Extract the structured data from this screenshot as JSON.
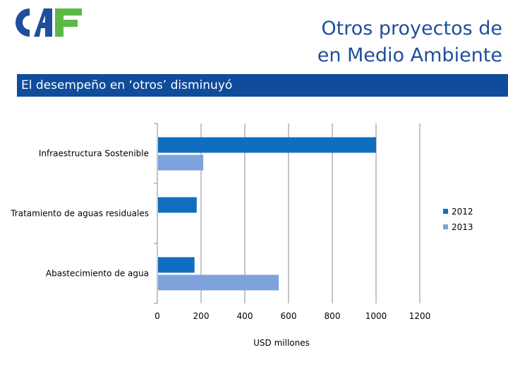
{
  "header": {
    "logo_text": "CAF",
    "title_lines": [
      "Otros proyectos de",
      "en Medio Ambiente"
    ]
  },
  "banner": {
    "text": "El desempeño en ‘otros’ disminuyó"
  },
  "colors": {
    "brand": "#1f4e9c",
    "series_2012": "#0f6ec2",
    "series_2013": "#7ea3dc",
    "banner": "#0f4c9b"
  },
  "chart_data": {
    "type": "bar",
    "orientation": "horizontal",
    "categories": [
      "Infraestructura Sostenible",
      "Tratamiento de aguas residuales",
      "Abastecimiento de agua"
    ],
    "series": [
      {
        "name": "2012",
        "values": [
          1000,
          180,
          170
        ]
      },
      {
        "name": "2013",
        "values": [
          210,
          0,
          555
        ]
      }
    ],
    "xlabel": "USD millones",
    "xlim": [
      0,
      1200
    ],
    "xticks": [
      0,
      200,
      400,
      600,
      800,
      1000,
      1200
    ],
    "grid": true,
    "legend": "right"
  }
}
